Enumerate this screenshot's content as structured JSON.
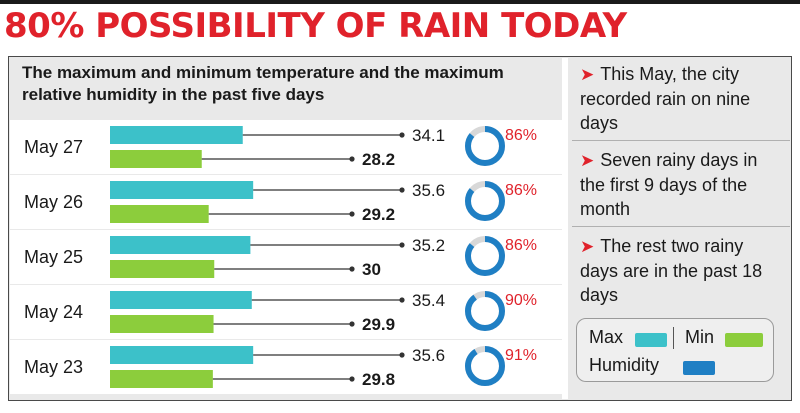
{
  "headline": "80% POSSIBILITY OF RAIN TODAY",
  "colors": {
    "max": "#3cc1c9",
    "min": "#8ccd3c",
    "humidity": "#1f7fc4",
    "accent": "#e0222b"
  },
  "chart_data": {
    "type": "bar",
    "title": "The maximum and minimum temperature and the maximum relative humidity in the past five days",
    "categories": [
      "May 27",
      "May 26",
      "May 25",
      "May 24",
      "May 23"
    ],
    "series": [
      {
        "name": "Max",
        "values": [
          34.1,
          35.6,
          35.2,
          35.4,
          35.6
        ]
      },
      {
        "name": "Min",
        "values": [
          28.2,
          29.2,
          30,
          29.9,
          29.8
        ]
      },
      {
        "name": "Humidity",
        "values": [
          86,
          86,
          86,
          90,
          91
        ]
      }
    ],
    "max_labels": [
      "34.1",
      "35.6",
      "35.2",
      "35.4",
      "35.6"
    ],
    "min_labels": [
      "28.2",
      "29.2",
      "30",
      "29.9",
      "29.8"
    ],
    "humidity_labels": [
      "86%",
      "86%",
      "86%",
      "90%",
      "91%"
    ],
    "legend": {
      "max": "Max",
      "min": "Min",
      "humidity": "Humidity"
    }
  },
  "notes": [
    {
      "arrow": "➤",
      "text": "This May, the city recorded rain on nine days"
    },
    {
      "arrow": "➤",
      "text": "Seven rainy days in the first 9 days of the month"
    },
    {
      "arrow": "➤",
      "text": "The rest two rainy days are in the past 18 days"
    }
  ]
}
